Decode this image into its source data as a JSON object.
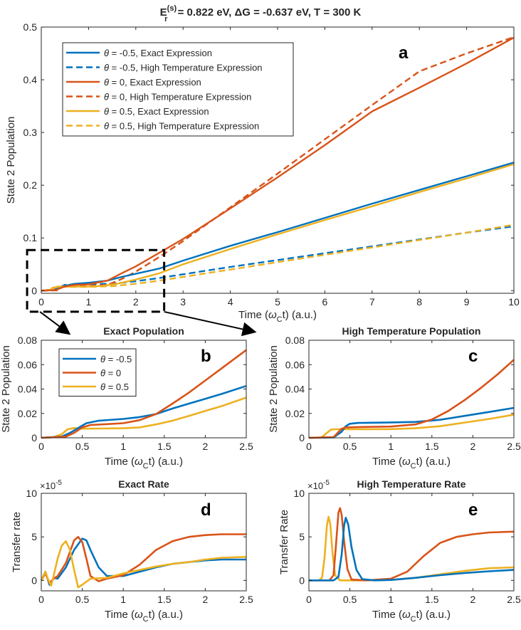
{
  "suptitle": {
    "e_sym": "E",
    "e_sub": "r",
    "e_sup": "(s)",
    "rest": " = 0.822 eV, ΔG = -0.637 eV, T = 300 K"
  },
  "colors": {
    "blue": "#0072BD",
    "red": "#D95319",
    "yellow": "#EDB120"
  },
  "chart_data": [
    {
      "id": "a",
      "type": "line",
      "letter": "a",
      "title": "",
      "xlabel": "Time (ω_C t) (a.u.)",
      "xlabel_pre": "Time (",
      "xlabel_omega": "ω",
      "xlabel_sub": "C",
      "xlabel_post": "t) (a.u.)",
      "ylabel": "State 2 Population",
      "xlim": [
        0,
        10
      ],
      "ylim": [
        -0.005,
        0.5
      ],
      "xticks": [
        0,
        1,
        2,
        3,
        4,
        5,
        6,
        7,
        8,
        9,
        10
      ],
      "yticks": [
        0,
        0.1,
        0.2,
        0.3,
        0.4,
        0.5
      ],
      "ytick_labels": [
        "0",
        "0.1",
        "0.2",
        "0.3",
        "0.4",
        "0.5"
      ],
      "legend_position": "top-left",
      "legend": [
        {
          "theta": "-0.5",
          "label": ", Exact Expression",
          "color": "blue",
          "dash": false
        },
        {
          "theta": "-0.5",
          "label": ", High Temperature Expression",
          "color": "blue",
          "dash": true
        },
        {
          "theta": "0",
          "label": ", Exact Expression",
          "color": "red",
          "dash": false
        },
        {
          "theta": "0",
          "label": ", High Temperature Expression",
          "color": "red",
          "dash": true
        },
        {
          "theta": "0.5",
          "label": ", Exact Expression",
          "color": "yellow",
          "dash": false
        },
        {
          "theta": "0.5",
          "label": ", High Temperature Expression",
          "color": "yellow",
          "dash": true
        }
      ],
      "zoom_box": {
        "x": [
          -0.3,
          2.6
        ],
        "y": [
          -0.04,
          0.077
        ]
      },
      "series": [
        {
          "name": "θ = -0.5 High Temperature",
          "color": "blue",
          "dash": true,
          "x": [
            0,
            0.2,
            0.35,
            0.5,
            0.8,
            1.2,
            1.5,
            2.0,
            2.5,
            3,
            4,
            5,
            6,
            7,
            8,
            9,
            10
          ],
          "y": [
            0,
            0.0005,
            0.005,
            0.011,
            0.0125,
            0.0128,
            0.013,
            0.018,
            0.024,
            0.031,
            0.045,
            0.058,
            0.071,
            0.084,
            0.097,
            0.11,
            0.122
          ]
        },
        {
          "name": "θ = 0.5 High Temperature",
          "color": "yellow",
          "dash": true,
          "x": [
            0,
            0.15,
            0.25,
            0.35,
            0.5,
            1.0,
            1.5,
            2.0,
            2.5,
            3,
            4,
            5,
            6,
            7,
            8,
            9,
            10
          ],
          "y": [
            0,
            0.001,
            0.006,
            0.007,
            0.007,
            0.0072,
            0.0085,
            0.013,
            0.019,
            0.026,
            0.04,
            0.054,
            0.068,
            0.082,
            0.096,
            0.11,
            0.125
          ]
        },
        {
          "name": "θ = 0 High Temperature",
          "color": "red",
          "dash": true,
          "x": [
            0,
            0.35,
            0.45,
            0.6,
            1.0,
            1.4,
            1.7,
            2.0,
            2.5,
            3,
            4,
            5,
            6,
            7,
            8,
            9,
            10
          ],
          "y": [
            0,
            0.0005,
            0.008,
            0.009,
            0.009,
            0.011,
            0.022,
            0.036,
            0.064,
            0.094,
            0.158,
            0.222,
            0.287,
            0.352,
            0.416,
            0.45,
            0.481
          ]
        },
        {
          "name": "θ = -0.5 Exact",
          "color": "blue",
          "dash": false,
          "x": [
            0,
            0.3,
            0.5,
            0.7,
            1.0,
            1.4,
            1.7,
            2.0,
            2.5,
            3,
            4,
            5,
            6,
            7,
            8,
            9,
            10
          ],
          "y": [
            0,
            0.002,
            0.009,
            0.013,
            0.015,
            0.019,
            0.026,
            0.032,
            0.042,
            0.057,
            0.085,
            0.111,
            0.138,
            0.165,
            0.191,
            0.217,
            0.243
          ]
        },
        {
          "name": "θ = 0.5 Exact",
          "color": "yellow",
          "dash": false,
          "x": [
            0,
            0.2,
            0.35,
            0.5,
            1.0,
            1.3,
            1.6,
            2.0,
            2.5,
            3,
            4,
            5,
            6,
            7,
            8,
            9,
            10
          ],
          "y": [
            0,
            0.002,
            0.008,
            0.0075,
            0.0078,
            0.009,
            0.013,
            0.021,
            0.033,
            0.05,
            0.079,
            0.107,
            0.134,
            0.16,
            0.187,
            0.213,
            0.24
          ]
        },
        {
          "name": "θ = 0 Exact",
          "color": "red",
          "dash": false,
          "x": [
            0,
            0.3,
            0.5,
            0.7,
            1.0,
            1.4,
            1.7,
            2.0,
            2.5,
            3,
            4,
            5,
            6,
            7,
            8,
            9,
            10
          ],
          "y": [
            0,
            0.001,
            0.008,
            0.011,
            0.012,
            0.019,
            0.033,
            0.046,
            0.072,
            0.098,
            0.156,
            0.215,
            0.276,
            0.34,
            0.385,
            0.431,
            0.48
          ]
        }
      ]
    },
    {
      "id": "b",
      "type": "line",
      "letter": "b",
      "title": "Exact Population",
      "xlabel": "Time (ω_C t) (a.u.)",
      "xlabel_pre": "Time (",
      "xlabel_omega": "ω",
      "xlabel_sub": "C",
      "xlabel_post": "t) (a.u.)",
      "ylabel": "State 2 Population",
      "xlim": [
        0,
        2.5
      ],
      "ylim": [
        0,
        0.08
      ],
      "xticks": [
        0,
        0.5,
        1,
        1.5,
        2,
        2.5
      ],
      "yticks": [
        0,
        0.02,
        0.04,
        0.06,
        0.08
      ],
      "ytick_labels": [
        "0",
        "0.02",
        "0.04",
        "0.06",
        "0.08"
      ],
      "legend_position": "top-left",
      "legend": [
        {
          "theta": "-0.5",
          "label": "",
          "color": "blue",
          "dash": false
        },
        {
          "theta": "0",
          "label": "",
          "color": "red",
          "dash": false
        },
        {
          "theta": "0.5",
          "label": "",
          "color": "yellow",
          "dash": false
        }
      ],
      "series": [
        {
          "name": "θ = 0.5",
          "color": "yellow",
          "dash": false,
          "x": [
            0,
            0.15,
            0.25,
            0.32,
            0.4,
            0.5,
            0.7,
            1.0,
            1.2,
            1.4,
            1.6,
            1.8,
            2.0,
            2.2,
            2.5
          ],
          "y": [
            0,
            0.0005,
            0.003,
            0.007,
            0.008,
            0.0075,
            0.0076,
            0.0078,
            0.0085,
            0.011,
            0.014,
            0.018,
            0.022,
            0.026,
            0.033
          ]
        },
        {
          "name": "θ = -0.5",
          "color": "blue",
          "dash": false,
          "x": [
            0,
            0.25,
            0.35,
            0.45,
            0.55,
            0.7,
            1.0,
            1.2,
            1.4,
            1.6,
            1.8,
            2.0,
            2.2,
            2.5
          ],
          "y": [
            0,
            0.001,
            0.004,
            0.008,
            0.012,
            0.014,
            0.0155,
            0.017,
            0.0195,
            0.024,
            0.028,
            0.032,
            0.036,
            0.0425
          ]
        },
        {
          "name": "θ = 0",
          "color": "red",
          "dash": false,
          "x": [
            0,
            0.3,
            0.4,
            0.5,
            0.6,
            0.8,
            1.0,
            1.2,
            1.4,
            1.6,
            1.8,
            2.0,
            2.2,
            2.5
          ],
          "y": [
            0,
            0.001,
            0.004,
            0.0085,
            0.0105,
            0.0112,
            0.012,
            0.0145,
            0.0195,
            0.028,
            0.037,
            0.047,
            0.057,
            0.072
          ]
        }
      ]
    },
    {
      "id": "c",
      "type": "line",
      "letter": "c",
      "title": "High Temperature Population",
      "xlabel": "Time (ω_C t) (a.u.)",
      "xlabel_pre": "Time (",
      "xlabel_omega": "ω",
      "xlabel_sub": "C",
      "xlabel_post": "t) (a.u.)",
      "ylabel": "State 2 Population",
      "xlim": [
        0,
        2.5
      ],
      "ylim": [
        0,
        0.08
      ],
      "xticks": [
        0,
        0.5,
        1,
        1.5,
        2,
        2.5
      ],
      "yticks": [
        0,
        0.02,
        0.04,
        0.06,
        0.08
      ],
      "ytick_labels": [
        "0",
        "0.02",
        "0.04",
        "0.06",
        "0.08"
      ],
      "legend": [],
      "series": [
        {
          "name": "θ = 0.5",
          "color": "yellow",
          "dash": false,
          "x": [
            0,
            0.15,
            0.22,
            0.27,
            0.32,
            0.5,
            1.0,
            1.3,
            1.6,
            1.9,
            2.2,
            2.5
          ],
          "y": [
            0,
            0.0002,
            0.004,
            0.0068,
            0.007,
            0.007,
            0.0071,
            0.0078,
            0.0095,
            0.0125,
            0.0155,
            0.019
          ]
        },
        {
          "name": "θ = -0.5",
          "color": "blue",
          "dash": false,
          "x": [
            0,
            0.3,
            0.4,
            0.45,
            0.5,
            0.6,
            1.0,
            1.3,
            1.6,
            1.9,
            2.2,
            2.5
          ],
          "y": [
            0,
            0.0003,
            0.005,
            0.0095,
            0.0115,
            0.0122,
            0.0126,
            0.013,
            0.0148,
            0.018,
            0.0212,
            0.0245
          ]
        },
        {
          "name": "θ = 0",
          "color": "red",
          "dash": false,
          "x": [
            0,
            0.3,
            0.35,
            0.4,
            0.45,
            0.6,
            1.0,
            1.3,
            1.5,
            1.7,
            1.9,
            2.1,
            2.3,
            2.5
          ],
          "y": [
            0,
            0.0005,
            0.004,
            0.0075,
            0.0085,
            0.0088,
            0.0092,
            0.011,
            0.015,
            0.022,
            0.031,
            0.041,
            0.052,
            0.064
          ]
        }
      ]
    },
    {
      "id": "d",
      "type": "line",
      "letter": "d",
      "title": "Exact Rate",
      "xlabel": "Time (ω_C t) (a.u.)",
      "xlabel_pre": "Time (",
      "xlabel_omega": "ω",
      "xlabel_sub": "C",
      "xlabel_post": "t) (a.u.)",
      "ylabel": "Transfer rate",
      "y_exponent_base": "×10",
      "y_exponent": "-5",
      "xlim": [
        0,
        2.5
      ],
      "ylim": [
        -1.2,
        10
      ],
      "xticks": [
        0,
        0.5,
        1,
        1.5,
        2,
        2.5
      ],
      "yticks": [
        0,
        5,
        10
      ],
      "ytick_labels": [
        "0",
        "5",
        "10"
      ],
      "legend": [],
      "series": [
        {
          "name": "θ = -0.5",
          "color": "blue",
          "dash": false,
          "x": [
            0,
            0.05,
            0.1,
            0.15,
            0.2,
            0.3,
            0.4,
            0.5,
            0.55,
            0.6,
            0.7,
            0.8,
            1.0,
            1.2,
            1.4,
            1.6,
            1.8,
            2.0,
            2.2,
            2.5
          ],
          "y": [
            0,
            1.0,
            -0.5,
            0.3,
            0.2,
            1.5,
            3.5,
            4.8,
            4.6,
            3.5,
            1.5,
            0.5,
            0.5,
            1.0,
            1.5,
            1.9,
            2.1,
            2.3,
            2.4,
            2.4
          ]
        },
        {
          "name": "θ = 0",
          "color": "red",
          "dash": false,
          "x": [
            0,
            0.05,
            0.1,
            0.15,
            0.2,
            0.3,
            0.4,
            0.45,
            0.5,
            0.55,
            0.6,
            0.7,
            0.8,
            1.0,
            1.2,
            1.4,
            1.6,
            1.8,
            2.0,
            2.2,
            2.5
          ],
          "y": [
            0,
            0.8,
            -0.3,
            0.2,
            0.5,
            2.0,
            4.6,
            5.0,
            4.4,
            2.5,
            0.5,
            -0.1,
            0.2,
            0.6,
            1.8,
            3.5,
            4.5,
            5.0,
            5.2,
            5.3,
            5.3
          ]
        },
        {
          "name": "θ = 0.5",
          "color": "yellow",
          "dash": false,
          "x": [
            0,
            0.05,
            0.08,
            0.12,
            0.15,
            0.2,
            0.25,
            0.3,
            0.35,
            0.4,
            0.45,
            0.5,
            0.6,
            0.8,
            1.0,
            1.2,
            1.4,
            1.6,
            1.8,
            2.0,
            2.2,
            2.5
          ],
          "y": [
            0,
            1.0,
            0.2,
            -0.6,
            0.5,
            2.5,
            4.0,
            4.5,
            3.5,
            1.2,
            -0.8,
            -0.5,
            0.2,
            0.3,
            0.8,
            1.2,
            1.6,
            1.9,
            2.1,
            2.4,
            2.6,
            2.7
          ]
        }
      ]
    },
    {
      "id": "e",
      "type": "line",
      "letter": "e",
      "title": "High Temperature Rate",
      "xlabel": "Time (ω_C t) (a.u.)",
      "xlabel_pre": "Time (",
      "xlabel_omega": "ω",
      "xlabel_sub": "C",
      "xlabel_post": "t) (a.u.)",
      "ylabel": "Transfer Rate",
      "y_exponent_base": "×10",
      "y_exponent": "-5",
      "xlim": [
        0,
        2.5
      ],
      "ylim": [
        -1.2,
        10
      ],
      "xticks": [
        0,
        0.5,
        1,
        1.5,
        2,
        2.5
      ],
      "yticks": [
        0,
        5,
        10
      ],
      "ytick_labels": [
        "0",
        "5",
        "10"
      ],
      "legend": [],
      "series": [
        {
          "name": "θ = 0.5",
          "color": "yellow",
          "dash": false,
          "x": [
            0,
            0.12,
            0.16,
            0.19,
            0.22,
            0.24,
            0.26,
            0.29,
            0.32,
            0.38,
            0.6,
            1.0,
            1.3,
            1.6,
            1.9,
            2.2,
            2.5
          ],
          "y": [
            0,
            0,
            0.3,
            2.5,
            6.3,
            7.3,
            6.5,
            3.0,
            0.6,
            0,
            0,
            0.05,
            0.3,
            0.7,
            1.1,
            1.4,
            1.5
          ]
        },
        {
          "name": "θ = 0",
          "color": "red",
          "dash": false,
          "x": [
            0,
            0.25,
            0.3,
            0.33,
            0.36,
            0.38,
            0.4,
            0.43,
            0.47,
            0.52,
            0.7,
            1.0,
            1.2,
            1.4,
            1.6,
            1.8,
            2.0,
            2.2,
            2.5
          ],
          "y": [
            0,
            0,
            0.6,
            4.0,
            7.8,
            8.3,
            7.5,
            4.5,
            1.3,
            0.1,
            0,
            0.2,
            1.0,
            2.8,
            4.3,
            5.0,
            5.3,
            5.5,
            5.6
          ]
        },
        {
          "name": "θ = -0.5",
          "color": "blue",
          "dash": false,
          "x": [
            0,
            0.3,
            0.36,
            0.4,
            0.43,
            0.45,
            0.48,
            0.52,
            0.58,
            0.65,
            0.8,
            1.0,
            1.3,
            1.6,
            1.9,
            2.2,
            2.5
          ],
          "y": [
            0,
            0,
            0.4,
            3.0,
            6.3,
            7.2,
            6.4,
            3.8,
            1.2,
            0.15,
            0,
            0.05,
            0.3,
            0.6,
            0.85,
            1.05,
            1.2
          ]
        }
      ]
    }
  ]
}
